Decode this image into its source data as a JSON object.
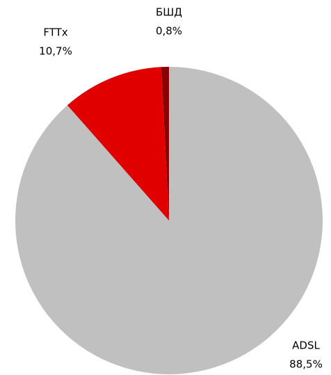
{
  "chart_data": {
    "type": "pie",
    "categories": [
      "ADSL",
      "FTTx",
      "БШД"
    ],
    "values": [
      88.5,
      10.7,
      0.8
    ],
    "value_labels": [
      "88,5%",
      "10,7%",
      "0,8%"
    ],
    "colors": [
      "#c0c0c0",
      "#e00000",
      "#8b0000"
    ]
  }
}
